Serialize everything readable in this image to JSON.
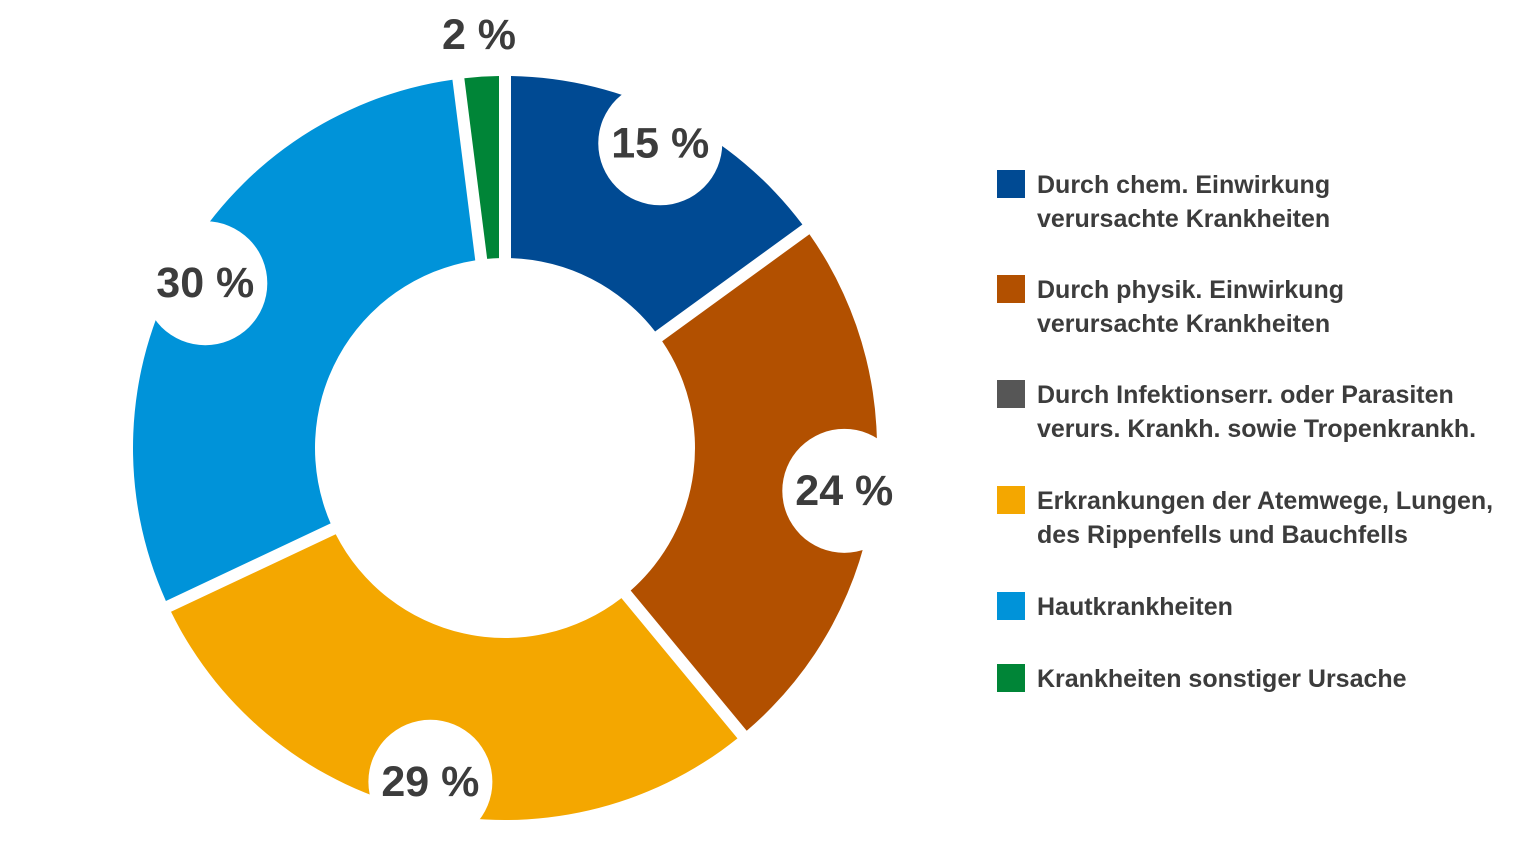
{
  "chart_data": {
    "type": "pie",
    "variant": "donut",
    "title": "",
    "legend_position": "right",
    "slices": [
      {
        "label": "Durch chem. Einwirkung\nverursachte Krankheiten",
        "value": 15,
        "value_label": "15 %",
        "color": "#004a93"
      },
      {
        "label": "Durch physik. Einwirkung\nverursachte Krankheiten",
        "value": 24,
        "value_label": "24 %",
        "color": "#b25000"
      },
      {
        "label": "Durch Infektionserr. oder Parasiten\nverurs. Krankh. sowie Tropenkrankh.",
        "value": 0,
        "value_label": "",
        "color": "#565656"
      },
      {
        "label": "Erkrankungen der Atemwege, Lungen,\ndes Rippenfells und Bauchfells",
        "value": 29,
        "value_label": "29 %",
        "color": "#f4a700"
      },
      {
        "label": "Hautkrankheiten",
        "value": 30,
        "value_label": "30 %",
        "color": "#0093d9"
      },
      {
        "label": "Krankheiten sonstiger Ursache",
        "value": 2,
        "value_label": "2 %",
        "color": "#008537"
      }
    ]
  }
}
